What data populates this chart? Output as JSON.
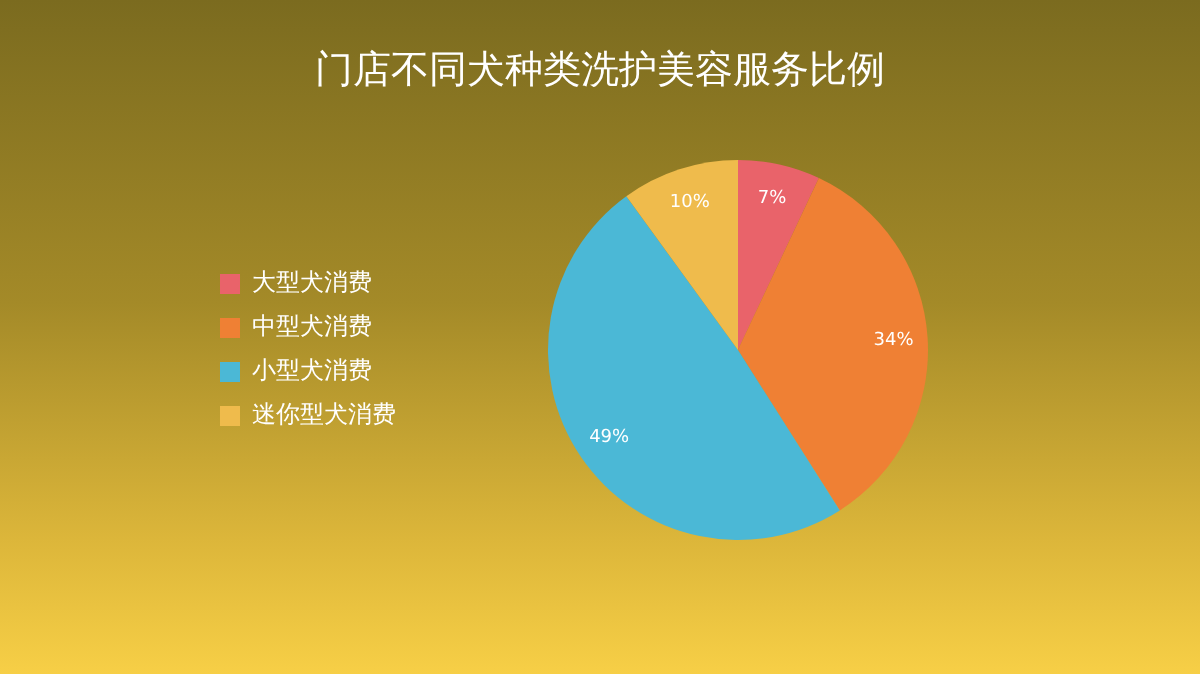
{
  "chart_data": {
    "type": "pie",
    "title": "门店不同犬种类洗护美容服务比例",
    "categories": [
      "大型犬消费",
      "中型犬消费",
      "小型犬消费",
      "迷你型犬消费"
    ],
    "values": [
      7,
      34,
      49,
      10
    ],
    "colors": [
      "#e9636a",
      "#ef8034",
      "#4bb8d6",
      "#efbb4c"
    ],
    "value_labels": [
      "7%",
      "34%",
      "49%",
      "10%"
    ],
    "legend": "left"
  }
}
